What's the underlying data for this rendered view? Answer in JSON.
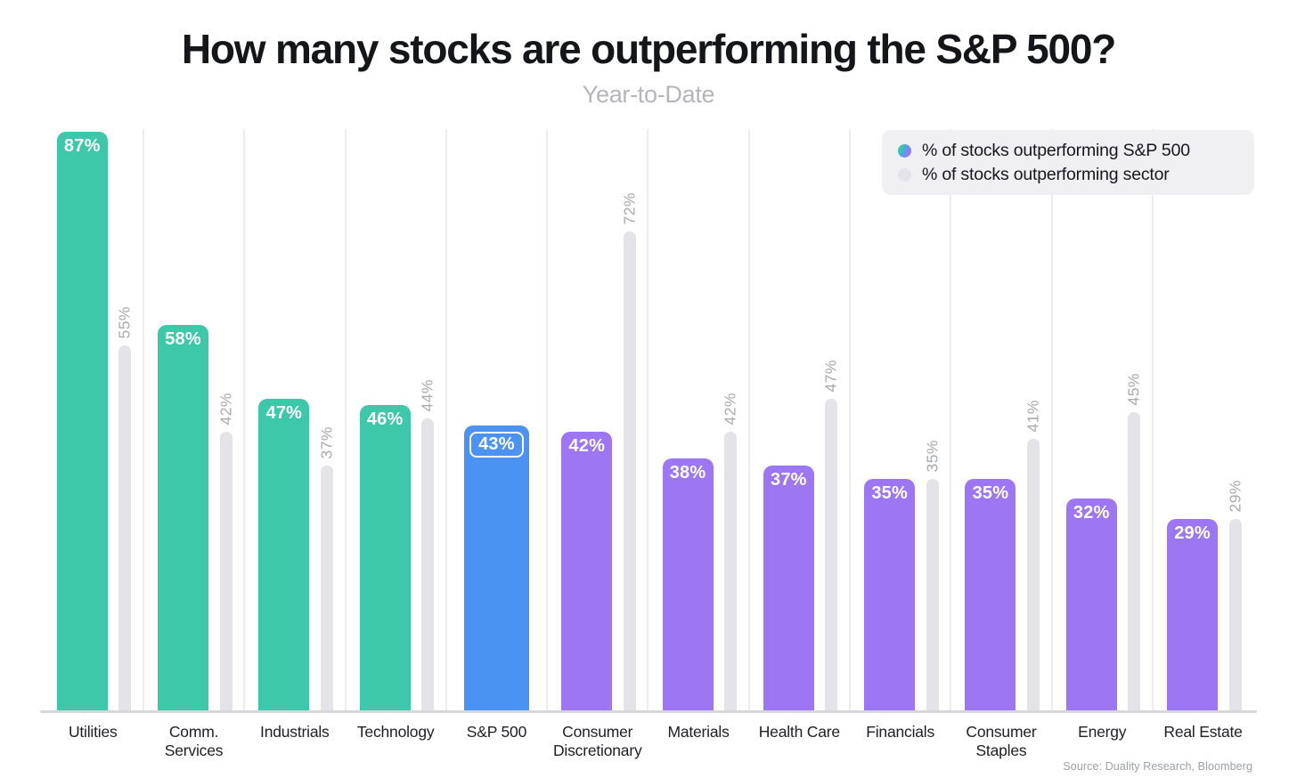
{
  "title": "How many stocks are outperforming the S&P 500?",
  "subtitle": "Year-to-Date",
  "source": "Source: Duality Research, Bloomberg",
  "legend": [
    {
      "label": "% of stocks outperforming S&P 500",
      "swatch": "gradient-dot"
    },
    {
      "label": "% of stocks outperforming sector",
      "swatch": "gray-dot"
    }
  ],
  "colors": {
    "outperform": "#3cc8a9",
    "index": "#4b93f3",
    "underperform": "#9d77f3",
    "sector_bar": "#e3e3e8",
    "gridline": "#ededf0",
    "axis": "#d6d6db",
    "value_label": "#ffffff",
    "sector_label": "#a9abb0"
  },
  "chart_data": {
    "type": "bar",
    "title": "How many stocks are outperforming the S&P 500?",
    "subtitle": "Year-to-Date",
    "xlabel": "",
    "ylabel": "",
    "ylim": [
      0,
      87
    ],
    "grid": "vertical-only",
    "legend_position": "top-right",
    "categories": [
      "Utilities",
      "Comm.\nServices",
      "Industrials",
      "Technology",
      "S&P 500",
      "Consumer\nDiscretionary",
      "Materials",
      "Health Care",
      "Financials",
      "Consumer\nStaples",
      "Energy",
      "Real Estate"
    ],
    "category_groups": [
      "outperform",
      "outperform",
      "outperform",
      "outperform",
      "index",
      "underperform",
      "underperform",
      "underperform",
      "underperform",
      "underperform",
      "underperform",
      "underperform"
    ],
    "series": [
      {
        "name": "% of stocks outperforming S&P 500",
        "values": [
          87,
          58,
          47,
          46,
          43,
          42,
          38,
          37,
          35,
          35,
          32,
          29
        ],
        "labels": [
          "87%",
          "58%",
          "47%",
          "46%",
          "43%",
          "42%",
          "38%",
          "37%",
          "35%",
          "35%",
          "32%",
          "29%"
        ]
      },
      {
        "name": "% of stocks outperforming sector",
        "values": [
          55,
          42,
          37,
          44,
          null,
          72,
          42,
          47,
          35,
          41,
          45,
          29
        ],
        "labels": [
          "55%",
          "42%",
          "37%",
          "44%",
          null,
          "72%",
          "42%",
          "47%",
          "35%",
          "41%",
          "45%",
          "29%"
        ]
      }
    ]
  }
}
